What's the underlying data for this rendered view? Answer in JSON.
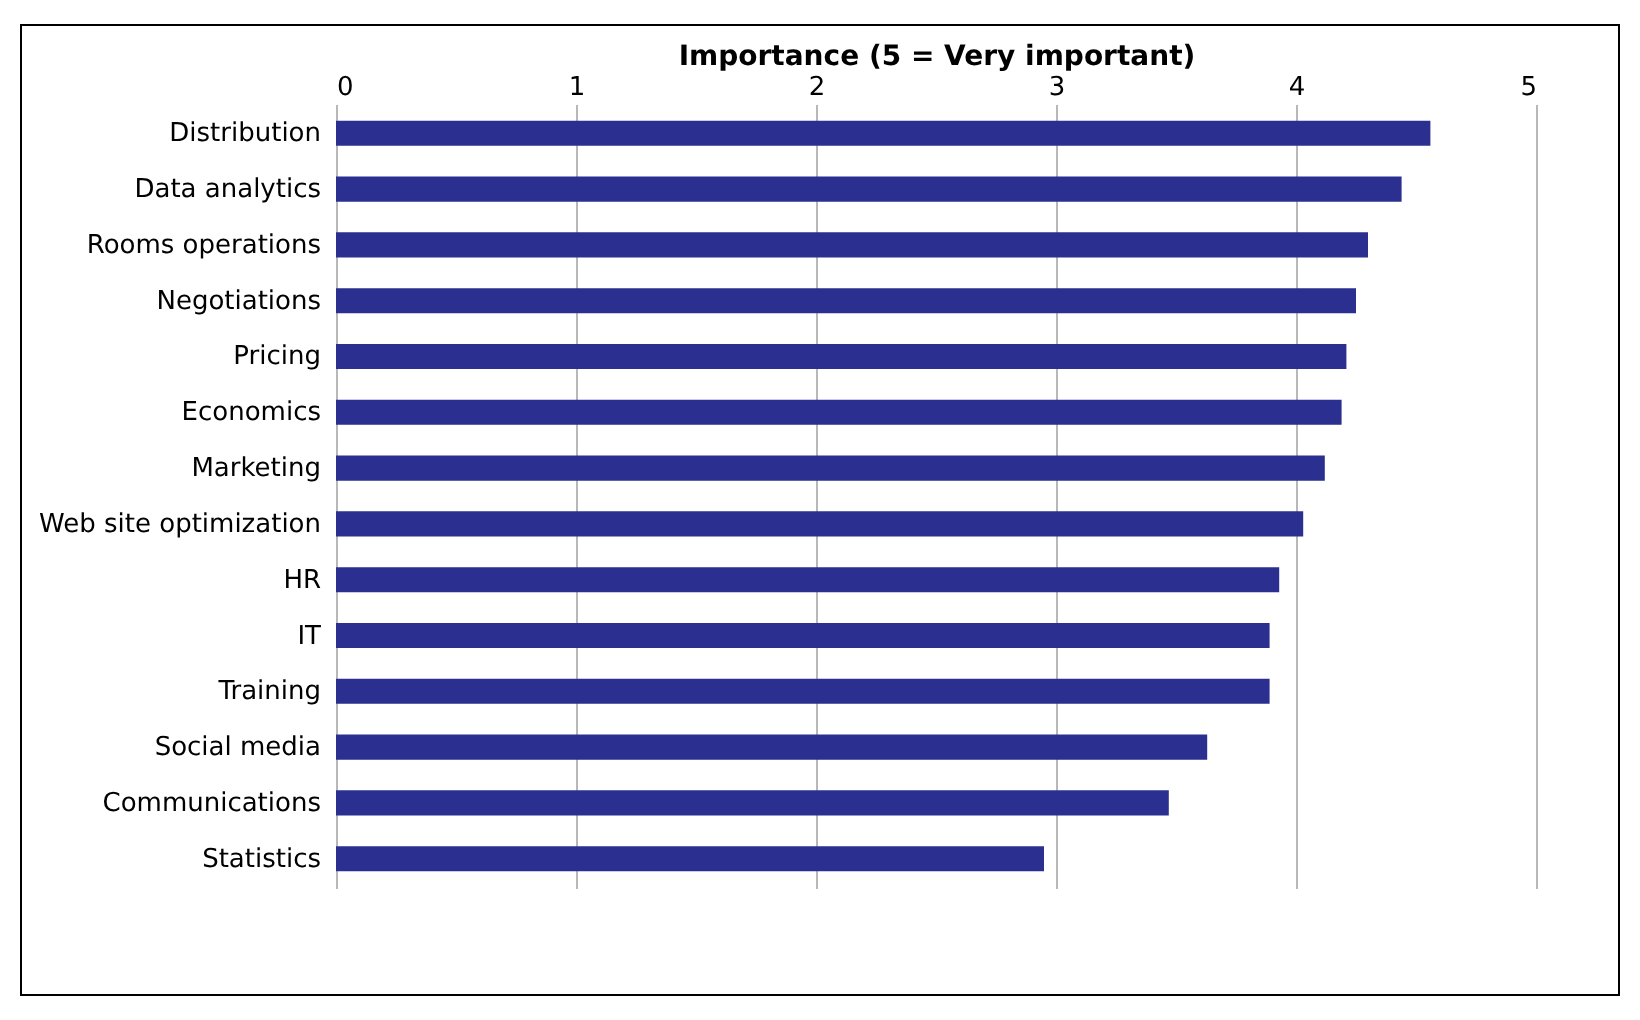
{
  "chart_data": {
    "type": "bar",
    "orientation": "horizontal",
    "xlabel": "Importance  (5 = Very important)",
    "categories": [
      "Distribution",
      "Data analytics",
      "Rooms operations",
      "Negotiations",
      "Pricing",
      "Economics",
      "Marketing",
      "Web site optimization",
      "HR",
      "IT",
      "Training",
      "Social media",
      "Communications",
      "Statistics"
    ],
    "values": [
      4.56,
      4.44,
      4.3,
      4.25,
      4.21,
      4.19,
      4.12,
      4.03,
      3.93,
      3.89,
      3.89,
      3.63,
      3.47,
      2.95
    ],
    "color": "#2b2f8f",
    "xlim": [
      0,
      5
    ],
    "xticks": [
      0,
      1,
      2,
      3,
      4,
      5
    ],
    "grid": "x"
  }
}
